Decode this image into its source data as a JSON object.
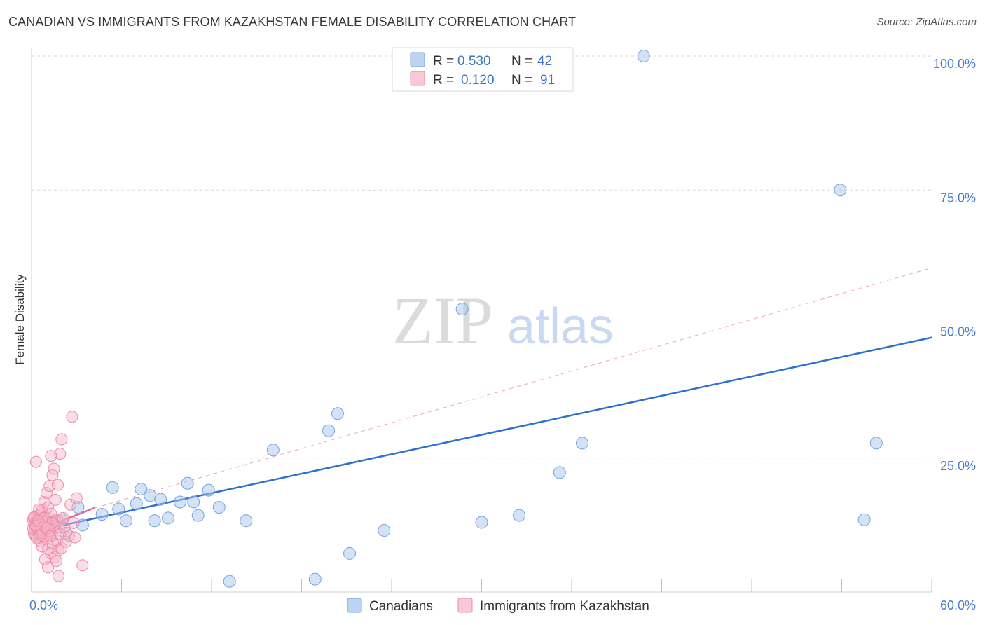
{
  "title": "CANADIAN VS IMMIGRANTS FROM KAZAKHSTAN FEMALE DISABILITY CORRELATION CHART",
  "source": "Source: ZipAtlas.com",
  "watermark": {
    "zip": "ZIP",
    "atlas": "atlas"
  },
  "legend": {
    "rows": [
      {
        "r_label": "R =",
        "r_value": "0.530",
        "n_label": "N =",
        "n_value": "42"
      },
      {
        "r_label": "R =",
        "r_value": "0.120",
        "n_label": "N =",
        "n_value": "91"
      }
    ]
  },
  "colors": {
    "canadians_fill": "#a9c5ee",
    "canadians_stroke": "#7aa3dc",
    "canadians_line": "#2f6fd0",
    "kaz_fill": "#f6b3c7",
    "kaz_stroke": "#ec8aa8",
    "kaz_line": "#e46a90",
    "grid": "#d9d9d9",
    "axis_text": "#4a7dc9"
  },
  "chart_data": {
    "type": "scatter",
    "title": "CANADIAN VS IMMIGRANTS FROM KAZAKHSTAN FEMALE DISABILITY CORRELATION CHART",
    "xlabel": "",
    "ylabel": "Female Disability",
    "xlim": [
      0,
      60
    ],
    "ylim": [
      0,
      105
    ],
    "x_tick_labels": [
      {
        "value": 0,
        "label": "0.0%"
      },
      {
        "value": 60,
        "label": "60.0%"
      }
    ],
    "y_tick_labels": [
      {
        "value": 25,
        "label": "25.0%"
      },
      {
        "value": 50,
        "label": "50.0%"
      },
      {
        "value": 75,
        "label": "75.0%"
      },
      {
        "value": 100,
        "label": "100.0%"
      }
    ],
    "x_minor_ticks": [
      0,
      6,
      12,
      18,
      24,
      30,
      36,
      42,
      48,
      54,
      60
    ],
    "series": [
      {
        "name": "Canadians",
        "R": 0.53,
        "N": 42,
        "trend": {
          "x": [
            0.5,
            60
          ],
          "y": [
            11.5,
            47.5
          ],
          "style": "solid"
        },
        "points": [
          [
            2.0,
            13.5
          ],
          [
            3.1,
            15.8
          ],
          [
            3.4,
            12.5
          ],
          [
            4.7,
            14.5
          ],
          [
            5.4,
            19.5
          ],
          [
            5.8,
            15.5
          ],
          [
            6.3,
            13.3
          ],
          [
            7.0,
            16.5
          ],
          [
            7.3,
            19.2
          ],
          [
            7.9,
            18.0
          ],
          [
            8.2,
            13.3
          ],
          [
            8.6,
            17.3
          ],
          [
            9.1,
            13.8
          ],
          [
            9.9,
            16.8
          ],
          [
            10.4,
            20.3
          ],
          [
            10.8,
            16.8
          ],
          [
            11.1,
            14.3
          ],
          [
            11.8,
            19.0
          ],
          [
            12.5,
            15.8
          ],
          [
            13.2,
            2.0
          ],
          [
            14.3,
            13.3
          ],
          [
            16.1,
            26.5
          ],
          [
            18.9,
            2.4
          ],
          [
            19.8,
            30.1
          ],
          [
            20.4,
            33.3
          ],
          [
            21.2,
            7.2
          ],
          [
            23.5,
            11.5
          ],
          [
            28.7,
            52.8
          ],
          [
            30.0,
            13.0
          ],
          [
            32.5,
            14.3
          ],
          [
            35.2,
            22.3
          ],
          [
            36.7,
            27.8
          ],
          [
            40.8,
            100.0
          ],
          [
            53.9,
            75.0
          ],
          [
            55.5,
            13.5
          ],
          [
            56.3,
            27.8
          ],
          [
            1.4,
            12.7
          ],
          [
            2.3,
            11.0
          ],
          [
            1.0,
            12.3
          ],
          [
            0.7,
            11.8
          ],
          [
            1.7,
            13.0
          ],
          [
            0.5,
            12.0
          ]
        ]
      },
      {
        "name": "Immigrants from Kazakhstan",
        "R": 0.12,
        "N": 91,
        "trend": {
          "x": [
            0.2,
            4.2
          ],
          "y": [
            11.3,
            15.7
          ],
          "style": "solid",
          "extended_x": [
            4.2,
            60
          ],
          "extended_y": [
            15.7,
            60.5
          ],
          "extended_style": "dashed"
        },
        "points": [
          [
            0.1,
            12.0
          ],
          [
            0.1,
            13.5
          ],
          [
            0.15,
            11.0
          ],
          [
            0.2,
            12.8
          ],
          [
            0.2,
            14.0
          ],
          [
            0.25,
            10.5
          ],
          [
            0.3,
            12.3
          ],
          [
            0.3,
            13.1
          ],
          [
            0.35,
            11.8
          ],
          [
            0.4,
            12.6
          ],
          [
            0.4,
            14.2
          ],
          [
            0.45,
            10.9
          ],
          [
            0.5,
            13.0
          ],
          [
            0.5,
            11.5
          ],
          [
            0.55,
            12.2
          ],
          [
            0.6,
            14.5
          ],
          [
            0.6,
            9.5
          ],
          [
            0.65,
            12.9
          ],
          [
            0.7,
            11.2
          ],
          [
            0.7,
            15.3
          ],
          [
            0.75,
            13.6
          ],
          [
            0.8,
            10.2
          ],
          [
            0.8,
            12.5
          ],
          [
            0.85,
            16.8
          ],
          [
            0.9,
            11.7
          ],
          [
            0.9,
            14.0
          ],
          [
            0.95,
            9.8
          ],
          [
            1.0,
            13.2
          ],
          [
            1.0,
            18.5
          ],
          [
            1.05,
            12.0
          ],
          [
            1.1,
            15.8
          ],
          [
            1.1,
            8.0
          ],
          [
            1.15,
            13.7
          ],
          [
            1.2,
            11.3
          ],
          [
            1.2,
            19.8
          ],
          [
            1.25,
            12.7
          ],
          [
            1.3,
            7.2
          ],
          [
            1.3,
            14.6
          ],
          [
            1.35,
            10.6
          ],
          [
            1.4,
            21.8
          ],
          [
            1.4,
            13.0
          ],
          [
            1.45,
            9.0
          ],
          [
            1.5,
            12.4
          ],
          [
            1.5,
            23.0
          ],
          [
            1.55,
            6.5
          ],
          [
            1.6,
            11.9
          ],
          [
            1.6,
            17.2
          ],
          [
            1.65,
            5.8
          ],
          [
            1.7,
            13.5
          ],
          [
            1.7,
            9.6
          ],
          [
            1.75,
            20.0
          ],
          [
            1.8,
            7.8
          ],
          [
            1.8,
            3.0
          ],
          [
            1.85,
            12.1
          ],
          [
            1.9,
            25.8
          ],
          [
            1.9,
            10.8
          ],
          [
            2.0,
            28.5
          ],
          [
            2.0,
            8.2
          ],
          [
            2.1,
            13.8
          ],
          [
            2.2,
            12.0
          ],
          [
            2.3,
            9.4
          ],
          [
            2.5,
            10.5
          ],
          [
            2.6,
            16.3
          ],
          [
            2.8,
            12.9
          ],
          [
            2.9,
            10.2
          ],
          [
            3.0,
            17.5
          ],
          [
            3.4,
            5.0
          ],
          [
            2.7,
            32.7
          ],
          [
            0.3,
            24.3
          ],
          [
            1.3,
            25.4
          ],
          [
            0.9,
            6.1
          ],
          [
            0.5,
            15.4
          ],
          [
            0.7,
            8.5
          ],
          [
            1.1,
            4.6
          ],
          [
            0.2,
            11.6
          ],
          [
            0.4,
            12.1
          ],
          [
            0.6,
            11.4
          ],
          [
            0.8,
            13.8
          ],
          [
            0.35,
            10.0
          ],
          [
            0.55,
            12.6
          ],
          [
            0.75,
            11.0
          ],
          [
            0.95,
            12.8
          ],
          [
            1.15,
            11.4
          ],
          [
            1.35,
            12.9
          ],
          [
            0.15,
            13.9
          ],
          [
            0.25,
            12.4
          ],
          [
            0.45,
            13.3
          ],
          [
            0.65,
            10.7
          ],
          [
            0.85,
            12.2
          ],
          [
            1.05,
            11.9
          ],
          [
            1.25,
            10.4
          ]
        ]
      }
    ],
    "legend_entries": [
      "Canadians",
      "Immigrants from Kazakhstan"
    ]
  }
}
